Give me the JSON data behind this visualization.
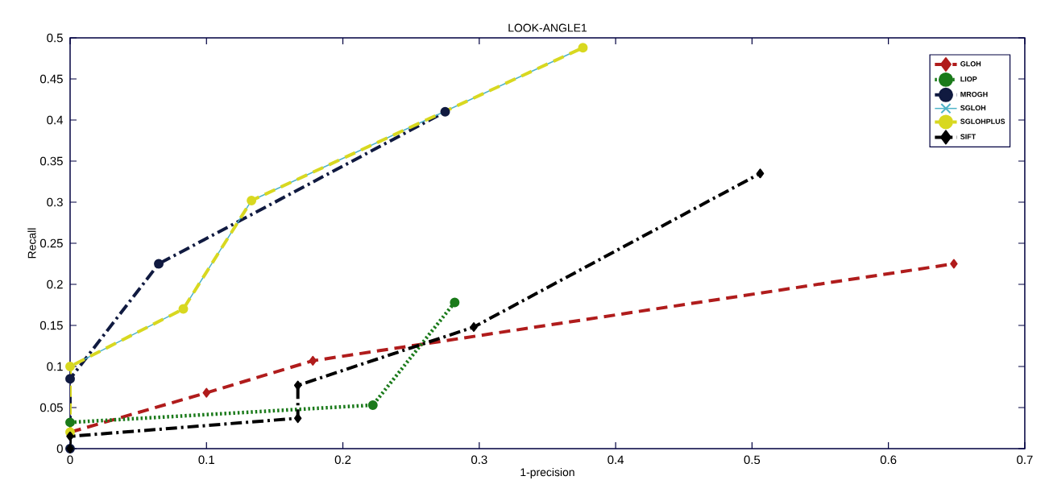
{
  "chart_data": {
    "type": "line",
    "title": "LOOK-ANGLE1",
    "xlabel": "1-precision",
    "ylabel": "Recall",
    "xlim": [
      0,
      0.7
    ],
    "ylim": [
      0,
      0.5
    ],
    "xticks": [
      0,
      0.1,
      0.2,
      0.3,
      0.4,
      0.5,
      0.6,
      0.7
    ],
    "yticks": [
      0,
      0.05,
      0.1,
      0.15,
      0.2,
      0.25,
      0.3,
      0.35,
      0.4,
      0.45,
      0.5
    ],
    "grid": false,
    "legend": "top right",
    "series": [
      {
        "name": "GLOH",
        "color": "#b01c1c",
        "line_style": "dashed",
        "marker": "diamond",
        "x": [
          0,
          0.1,
          0.178,
          0.648
        ],
        "values": [
          0.02,
          0.068,
          0.107,
          0.225
        ]
      },
      {
        "name": "LIOP",
        "color": "#1a7a1a",
        "line_style": "dotted",
        "marker": "circle",
        "x": [
          0,
          0.222,
          0.282
        ],
        "values": [
          0.032,
          0.053,
          0.178
        ]
      },
      {
        "name": "MROGH",
        "color": "#101a40",
        "line_style": "dashdot",
        "marker": "circle",
        "x": [
          0,
          0,
          0.065,
          0.275
        ],
        "values": [
          0,
          0.085,
          0.225,
          0.41
        ]
      },
      {
        "name": "SGLOH",
        "color": "#4fb3c8",
        "line_style": "solid",
        "marker": "cross",
        "x": [
          0,
          0.083,
          0.133,
          0.376
        ],
        "values": [
          0.1,
          0.17,
          0.302,
          0.488
        ]
      },
      {
        "name": "SGLOHPLUS",
        "color": "#d8d820",
        "line_style": "dashed",
        "marker": "circle",
        "x": [
          0,
          0,
          0.083,
          0.133,
          0.376
        ],
        "values": [
          0.02,
          0.1,
          0.17,
          0.302,
          0.488
        ]
      },
      {
        "name": "SIFT",
        "color": "#000000",
        "line_style": "dashdot",
        "marker": "diamond",
        "x": [
          0,
          0,
          0.167,
          0.167,
          0.296,
          0.506
        ],
        "values": [
          0,
          0.015,
          0.037,
          0.077,
          0.148,
          0.335
        ]
      }
    ]
  }
}
